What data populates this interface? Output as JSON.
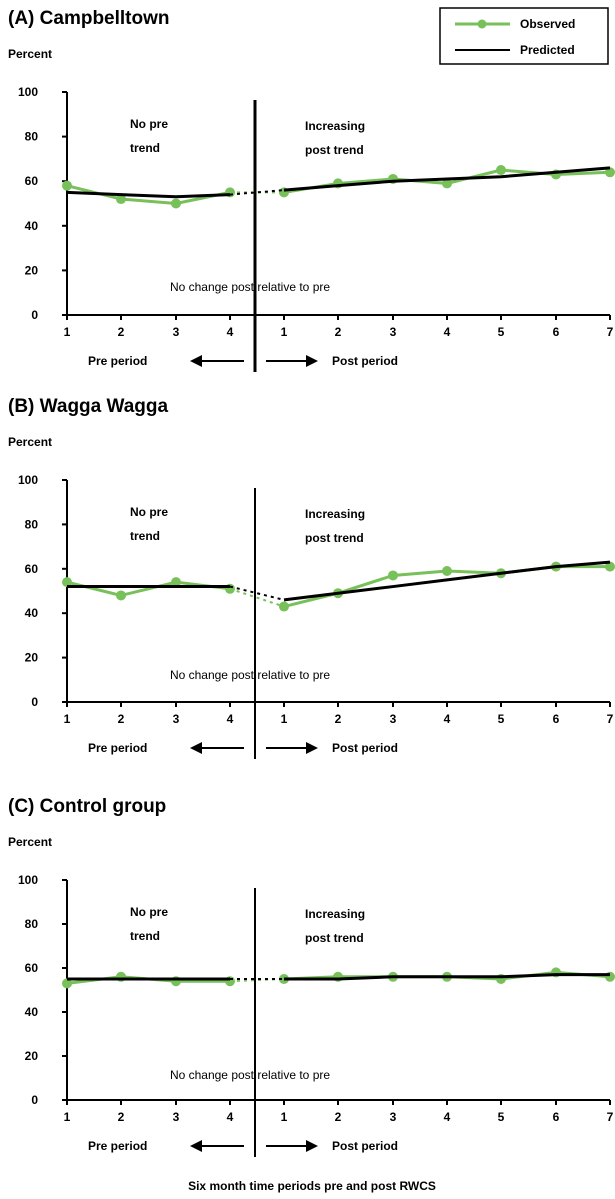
{
  "legend": {
    "observed": "Observed",
    "predicted": "Predicted"
  },
  "colors": {
    "observed": "#77c05a",
    "predicted": "#000000"
  },
  "caption": "Six month time periods pre and post RWCS",
  "chart_data": [
    {
      "type": "line",
      "title": "(A) Campbelltown",
      "ylabel": "Percent",
      "ylim": [
        0,
        100
      ],
      "yticks": [
        "0",
        "20",
        "40",
        "60",
        "80",
        "100"
      ],
      "xticks": [
        "1",
        "2",
        "3",
        "4",
        "1",
        "2",
        "3",
        "4",
        "5",
        "6",
        "7"
      ],
      "pre_label": "Pre period",
      "post_label": "Post period",
      "pre_trend": [
        "No pre",
        "trend"
      ],
      "post_trend": [
        "Increasing",
        "post trend"
      ],
      "change_note": "No change post relative to pre",
      "series": [
        {
          "name": "Observed",
          "values": [
            58,
            52,
            50,
            55,
            55,
            59,
            61,
            59,
            65,
            63,
            64
          ]
        },
        {
          "name": "Predicted",
          "pre": [
            55,
            54,
            53,
            54
          ],
          "post": [
            56,
            58,
            60,
            61,
            62,
            64,
            66
          ]
        }
      ]
    },
    {
      "type": "line",
      "title": "(B) Wagga Wagga",
      "ylabel": "Percent",
      "ylim": [
        0,
        100
      ],
      "yticks": [
        "0",
        "20",
        "40",
        "60",
        "80",
        "100"
      ],
      "xticks": [
        "1",
        "2",
        "3",
        "4",
        "1",
        "2",
        "3",
        "4",
        "5",
        "6",
        "7"
      ],
      "pre_label": "Pre period",
      "post_label": "Post period",
      "pre_trend": [
        "No pre",
        "trend"
      ],
      "post_trend": [
        "Increasing",
        "post trend"
      ],
      "change_note": "No change post relative to pre",
      "series": [
        {
          "name": "Observed",
          "values": [
            54,
            48,
            54,
            51,
            43,
            49,
            57,
            59,
            58,
            61,
            61
          ]
        },
        {
          "name": "Predicted",
          "pre": [
            52,
            52,
            52,
            52
          ],
          "post": [
            46,
            49,
            52,
            55,
            58,
            61,
            63
          ]
        }
      ]
    },
    {
      "type": "line",
      "title": "(C) Control group",
      "ylabel": "Percent",
      "ylim": [
        0,
        100
      ],
      "yticks": [
        "0",
        "20",
        "40",
        "60",
        "80",
        "100"
      ],
      "xticks": [
        "1",
        "2",
        "3",
        "4",
        "1",
        "2",
        "3",
        "4",
        "5",
        "6",
        "7"
      ],
      "pre_label": "Pre period",
      "post_label": "Post period",
      "pre_trend": [
        "No pre",
        "trend"
      ],
      "post_trend": [
        "Increasing",
        "post trend"
      ],
      "change_note": "No change post relative to pre",
      "series": [
        {
          "name": "Observed",
          "values": [
            53,
            56,
            54,
            54,
            55,
            56,
            56,
            56,
            55,
            58,
            56
          ]
        },
        {
          "name": "Predicted",
          "pre": [
            55,
            55,
            55,
            55
          ],
          "post": [
            55,
            55,
            56,
            56,
            56,
            57,
            57
          ]
        }
      ]
    }
  ]
}
